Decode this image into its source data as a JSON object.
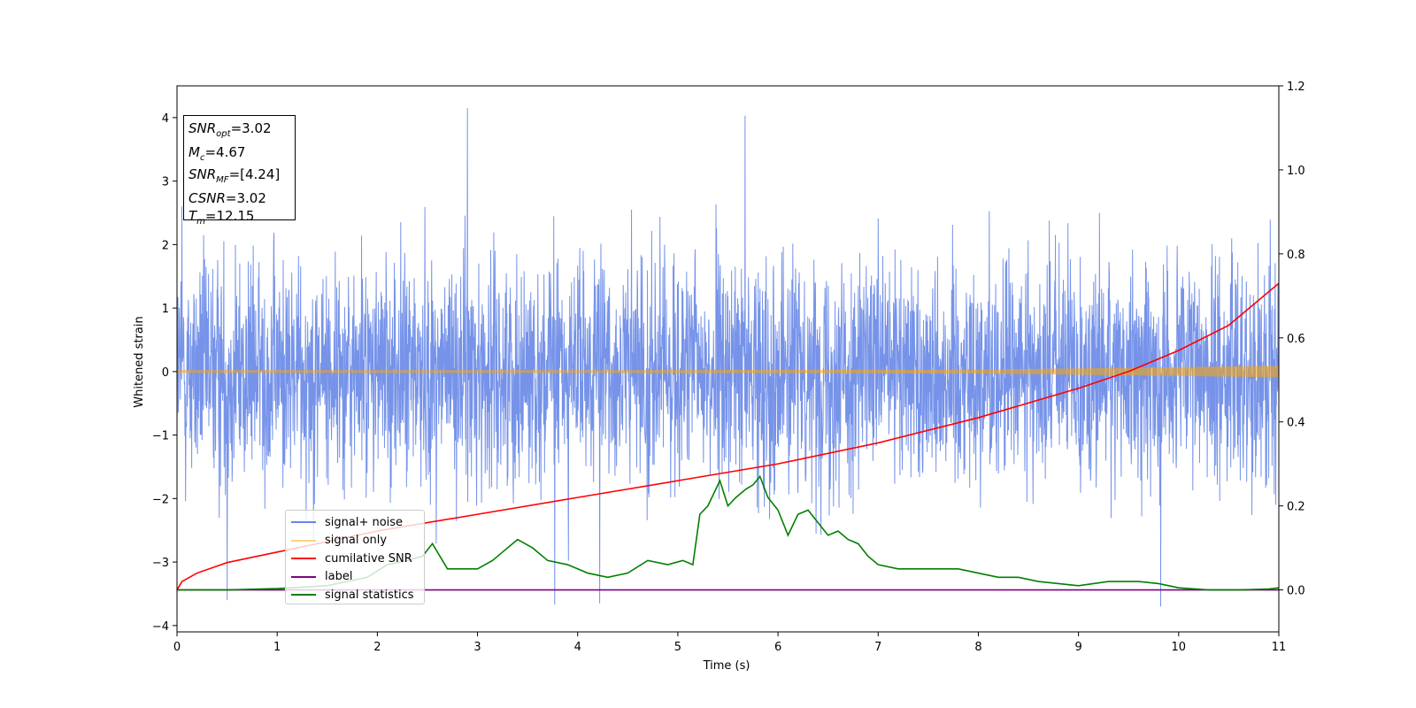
{
  "chart_data": {
    "type": "line",
    "xlabel": "Time (s)",
    "ylabel": "Whitened strain",
    "xlim": [
      0,
      11
    ],
    "ylim": [
      -4.1,
      4.5
    ],
    "y2lim": [
      -0.1,
      1.2
    ],
    "x_ticks": [
      "0",
      "1",
      "2",
      "3",
      "4",
      "5",
      "6",
      "7",
      "8",
      "9",
      "10",
      "11"
    ],
    "y_ticks": [
      "4",
      "3",
      "2",
      "1",
      "0",
      "−1",
      "−2",
      "−3",
      "−4"
    ],
    "y2_ticks": [
      "1.2",
      "1.0",
      "0.8",
      "0.6",
      "0.4",
      "0.2",
      "0.0"
    ],
    "grid": false,
    "legend_position": "lower-left",
    "annotation": {
      "snr_opt": "=3.02",
      "mc": "=4.67",
      "snr_mf": "=[4.24]",
      "csnr": "=3.02",
      "tm": "=12.15"
    },
    "series": [
      {
        "name": "signal+ noise",
        "color": "#4169e1",
        "axis": "left",
        "description_values": {
          "mean": 0,
          "std": 1.0,
          "approx_min": -3.7,
          "approx_max": 4.2
        },
        "spikes": [
          [
            2.9,
            4.15
          ],
          [
            5.67,
            4.03
          ],
          [
            9.82,
            -3.7
          ],
          [
            3.77,
            -3.67
          ],
          [
            4.22,
            -3.65
          ],
          [
            0.5,
            -3.6
          ],
          [
            0.05,
            2.6
          ]
        ]
      },
      {
        "name": "signal only",
        "color": "#ffa500",
        "axis": "left",
        "envelope": [
          [
            0,
            0.02
          ],
          [
            2,
            0.02
          ],
          [
            4,
            0.02
          ],
          [
            6,
            0.025
          ],
          [
            8,
            0.03
          ],
          [
            9,
            0.05
          ],
          [
            10,
            0.07
          ],
          [
            11,
            0.09
          ]
        ]
      },
      {
        "name": "cumilative SNR",
        "color": "#ff0000",
        "axis": "right",
        "x": [
          0,
          0.05,
          0.2,
          0.5,
          1,
          2,
          3,
          4,
          5,
          6,
          7,
          8,
          9,
          9.5,
          10,
          10.5,
          11
        ],
        "y": [
          0.0,
          0.02,
          0.04,
          0.065,
          0.09,
          0.14,
          0.18,
          0.22,
          0.26,
          0.3,
          0.35,
          0.41,
          0.48,
          0.52,
          0.57,
          0.63,
          0.73
        ]
      },
      {
        "name": "label",
        "color": "#800080",
        "axis": "right",
        "x": [
          0,
          11
        ],
        "y": [
          0,
          0
        ]
      },
      {
        "name": "signal statistics",
        "color": "#008000",
        "axis": "right",
        "x": [
          0,
          0.5,
          1,
          1.5,
          1.9,
          2.1,
          2.3,
          2.45,
          2.55,
          2.7,
          2.85,
          3.0,
          3.15,
          3.25,
          3.4,
          3.55,
          3.7,
          3.9,
          4.1,
          4.3,
          4.5,
          4.7,
          4.9,
          5.05,
          5.15,
          5.22,
          5.3,
          5.42,
          5.5,
          5.58,
          5.68,
          5.75,
          5.82,
          5.9,
          6.0,
          6.1,
          6.2,
          6.3,
          6.4,
          6.5,
          6.6,
          6.7,
          6.8,
          6.9,
          7.0,
          7.2,
          7.4,
          7.6,
          7.8,
          8.0,
          8.2,
          8.4,
          8.6,
          8.8,
          9.0,
          9.3,
          9.6,
          9.8,
          10.0,
          10.3,
          10.6,
          10.9,
          11.0
        ],
        "y": [
          0.0,
          0.0,
          0.003,
          0.01,
          0.03,
          0.06,
          0.07,
          0.08,
          0.11,
          0.05,
          0.05,
          0.05,
          0.07,
          0.09,
          0.12,
          0.1,
          0.07,
          0.06,
          0.04,
          0.03,
          0.04,
          0.07,
          0.06,
          0.07,
          0.06,
          0.18,
          0.2,
          0.26,
          0.2,
          0.22,
          0.24,
          0.25,
          0.27,
          0.22,
          0.19,
          0.13,
          0.18,
          0.19,
          0.16,
          0.13,
          0.14,
          0.12,
          0.11,
          0.08,
          0.06,
          0.05,
          0.05,
          0.05,
          0.05,
          0.04,
          0.03,
          0.03,
          0.02,
          0.015,
          0.01,
          0.02,
          0.02,
          0.015,
          0.005,
          0.0,
          0.0,
          0.002,
          0.005
        ]
      }
    ]
  }
}
